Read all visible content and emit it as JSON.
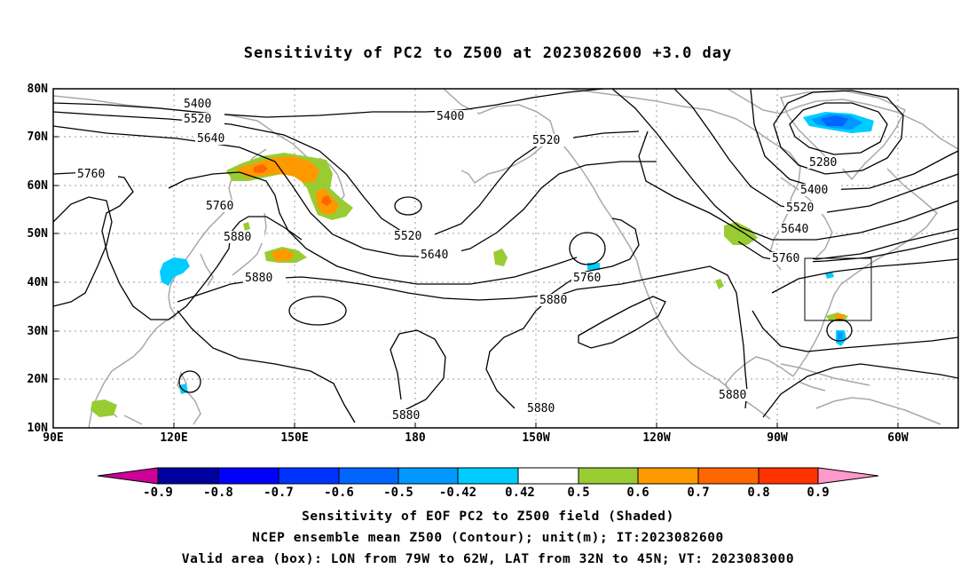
{
  "title": "Sensitivity of PC2 to Z500 at 2023082600 +3.0 day",
  "map": {
    "lat_labels": [
      "80N",
      "70N",
      "60N",
      "50N",
      "40N",
      "30N",
      "20N",
      "10N"
    ],
    "lon_labels": [
      "90E",
      "120E",
      "150E",
      "180",
      "150W",
      "120W",
      "90W",
      "60W"
    ],
    "contour_labels": [
      "5400",
      "5520",
      "5640",
      "5760",
      "5400",
      "5520",
      "5280",
      "5400",
      "5520",
      "5640",
      "5760",
      "5760",
      "5520",
      "5640",
      "5760",
      "5880",
      "5880",
      "5880",
      "5880",
      "5880"
    ],
    "valid_box": {
      "lon_from": "79W",
      "lon_to": "62W",
      "lat_from": "32N",
      "lat_to": "45N"
    },
    "colors": {
      "coast": "#a9a9a9",
      "contour": "#000000",
      "pos_042": "#99cc33",
      "pos_05": "#ff9900",
      "pos_06": "#ff6600",
      "neg_042": "#00ccff",
      "neg_05": "#0099ff",
      "neg_06": "#0066ff"
    }
  },
  "colorbar": {
    "labels": [
      "-0.9",
      "-0.8",
      "-0.7",
      "-0.6",
      "-0.5",
      "-0.42",
      "0.42",
      "0.5",
      "0.6",
      "0.7",
      "0.8",
      "0.9"
    ],
    "colors": [
      "#0000a0",
      "#0000ff",
      "#0033ff",
      "#0066ff",
      "#0099ff",
      "#00ccff",
      "#ffffff",
      "#99cc33",
      "#ff9900",
      "#ff6600",
      "#ff3300",
      "#ff0000"
    ],
    "low_end_color": "#cc0099",
    "high_end_color": "#ff99cc"
  },
  "captions": {
    "line1": "Sensitivity of EOF PC2 to Z500 field (Shaded)",
    "line2": "NCEP ensemble mean Z500 (Contour); unit(m); IT:2023082600",
    "line3": "Valid area (box): LON from 79W to 62W, LAT from 32N to 45N; VT: 2023083000"
  }
}
